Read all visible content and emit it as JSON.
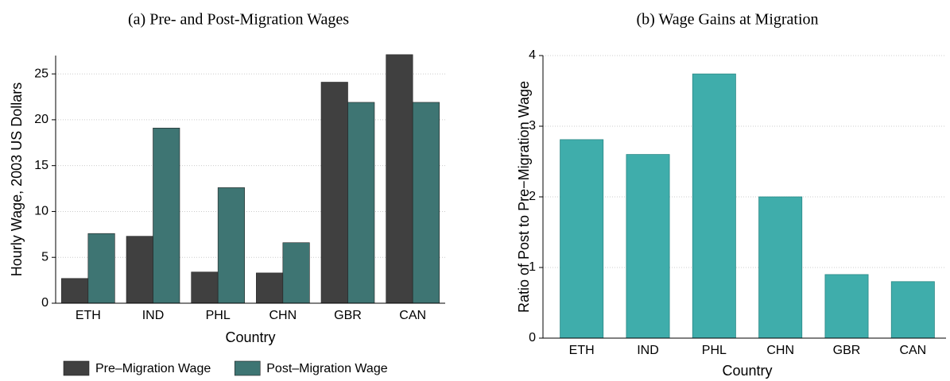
{
  "chart_data": [
    {
      "type": "bar",
      "title": "(a) Pre- and Post-Migration Wages",
      "x_label": "Country",
      "y_label": "Hourly Wage, 2003 US Dollars",
      "categories": [
        "ETH",
        "IND",
        "PHL",
        "CHN",
        "GBR",
        "CAN"
      ],
      "series": [
        {
          "name": "Pre–Migration Wage",
          "color": "#404040",
          "values": [
            2.7,
            7.3,
            3.4,
            3.3,
            24.1,
            27.1
          ]
        },
        {
          "name": "Post–Migration Wage",
          "color": "#3e7573",
          "values": [
            7.6,
            19.1,
            12.6,
            6.6,
            21.9,
            21.9
          ]
        }
      ],
      "ylim": [
        0,
        27
      ],
      "yticks": [
        0,
        5,
        10,
        15,
        20,
        25
      ],
      "grid": true,
      "legend": "bottom"
    },
    {
      "type": "bar",
      "title": "(b) Wage Gains at Migration",
      "x_label": "Country",
      "y_label": "Ratio of Post to Pre−Migration Wage",
      "categories": [
        "ETH",
        "IND",
        "PHL",
        "CHN",
        "GBR",
        "CAN"
      ],
      "values": [
        2.81,
        2.6,
        3.74,
        2.0,
        0.9,
        0.8
      ],
      "color": "#3fadab",
      "ylim": [
        0,
        4
      ],
      "yticks": [
        0,
        1,
        2,
        3,
        4
      ],
      "grid": true
    }
  ]
}
